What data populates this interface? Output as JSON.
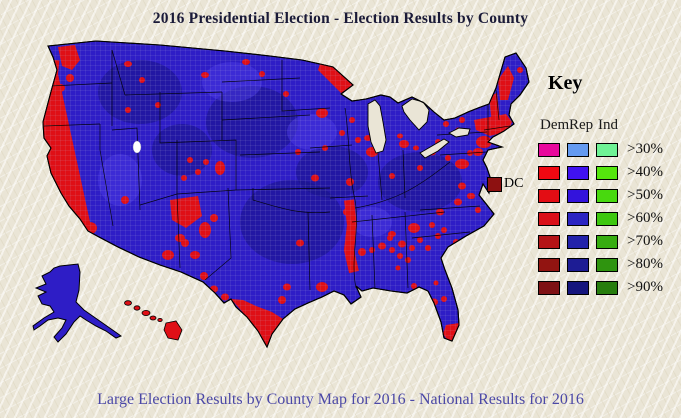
{
  "title": "2016 Presidential Election - Election Results by County",
  "key": {
    "heading": "Key",
    "columns": [
      "Dem",
      "Rep",
      "Ind"
    ],
    "rows": [
      {
        "label": ">30%",
        "dem": "#E8089C",
        "rep": "#649AF0",
        "ind": "#6FF295"
      },
      {
        "label": ">40%",
        "dem": "#F00812",
        "rep": "#4012F0",
        "ind": "#55E60D"
      },
      {
        "label": ">50%",
        "dem": "#E30D14",
        "rep": "#3313DC",
        "ind": "#48D90E"
      },
      {
        "label": ">60%",
        "dem": "#DA1019",
        "rep": "#2B24C2",
        "ind": "#3EC70F"
      },
      {
        "label": ">70%",
        "dem": "#B41316",
        "rep": "#2322AA",
        "ind": "#36AC10"
      },
      {
        "label": ">80%",
        "dem": "#921411",
        "rep": "#1D1C94",
        "ind": "#2F940F"
      },
      {
        "label": ">90%",
        "dem": "#7E1114",
        "rep": "#15157D",
        "ind": "#277D0D"
      }
    ]
  },
  "dc": {
    "label": "DC",
    "color": "#8D1111"
  },
  "footer": {
    "links": [
      {
        "text": "Large Election Results by County Map for 2016"
      },
      {
        "text": "National Results for 2016"
      }
    ],
    "separator": " - ",
    "link_color": "#4B48A6"
  },
  "map": {
    "alt": "United States county-level choropleth of the 2016 presidential election; Democratic counties in red shades, Republican counties in blue shades, with Alaska and Hawaii insets",
    "colors": {
      "rep_base": "#2E1DC6",
      "rep_dark": "#1A148C",
      "rep_lite": "#4A3AE4",
      "dem_base": "#DF0F16",
      "dem_dark": "#9E1212",
      "water": "#EAE5D6",
      "no_winner": "#FFFFFF"
    }
  }
}
